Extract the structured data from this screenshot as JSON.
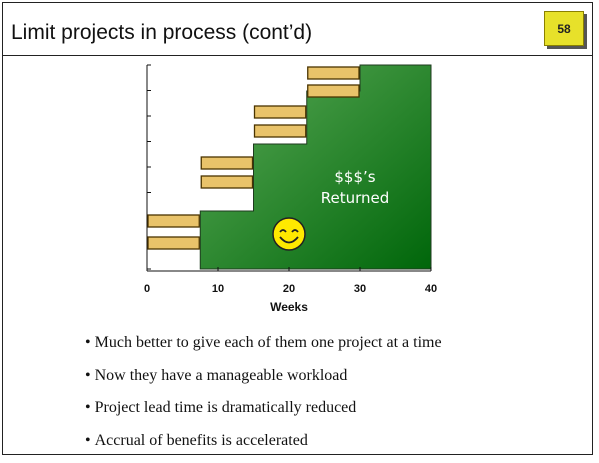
{
  "slide": {
    "title": "Limit projects in process (cont’d)",
    "page_number": "58"
  },
  "chart_data": {
    "type": "area",
    "x_ticks": [
      "0",
      "10",
      "20",
      "30",
      "40"
    ],
    "xlabel": "Weeks",
    "xlim": [
      0,
      40
    ],
    "steps": [
      {
        "x": 7.5,
        "level": 1
      },
      {
        "x": 15,
        "level": 2
      },
      {
        "x": 22.5,
        "level": 3
      },
      {
        "x": 30,
        "level": 4
      }
    ],
    "project_bars": [
      {
        "start": 0,
        "end": 7.5,
        "row": 0
      },
      {
        "start": 0,
        "end": 7.5,
        "row": 1
      },
      {
        "start": 7.5,
        "end": 15,
        "row": 2
      },
      {
        "start": 7.5,
        "end": 15,
        "row": 3
      },
      {
        "start": 15,
        "end": 22.5,
        "row": 4
      },
      {
        "start": 15,
        "end": 22.5,
        "row": 5
      },
      {
        "start": 22.5,
        "end": 30,
        "row": 6
      },
      {
        "start": 22.5,
        "end": 30,
        "row": 7
      }
    ],
    "area_label_line1": "$$$’s",
    "area_label_line2": "Returned",
    "colors": {
      "area_light": "#5cab58",
      "area_dark": "#00660a",
      "bar_fill": "#e9c36a",
      "bar_edge": "#4a3400",
      "smiley": "#ffe900"
    }
  },
  "bullets": [
    "Much better to give each of them one project at a time",
    "Now they have a manageable workload",
    "Project lead time is dramatically reduced",
    "Accrual of benefits is accelerated"
  ]
}
